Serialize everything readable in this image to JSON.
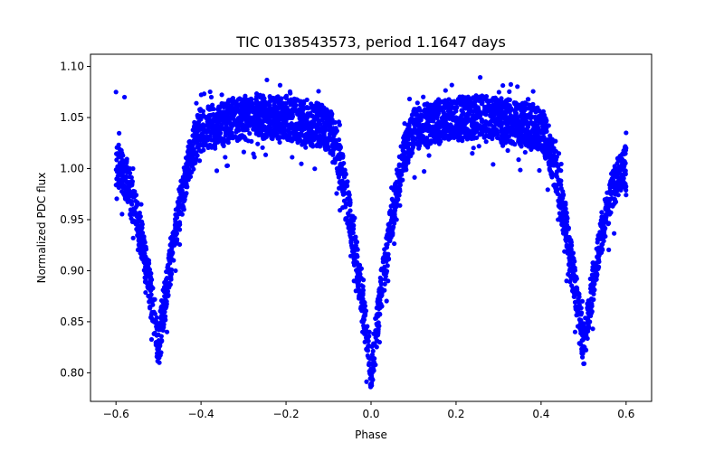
{
  "chart_data": {
    "type": "scatter",
    "title": "TIC 0138543573, period 1.1647 days",
    "xlabel": "Phase",
    "ylabel": "Normalized PDC flux",
    "xlim": [
      -0.66,
      0.66
    ],
    "ylim": [
      0.772,
      1.112
    ],
    "xticks": [
      -0.6,
      -0.4,
      -0.2,
      0.0,
      0.2,
      0.4,
      0.6
    ],
    "xtick_labels": [
      "−0.6",
      "−0.4",
      "−0.2",
      "0.0",
      "0.2",
      "0.4",
      "0.6"
    ],
    "yticks": [
      0.8,
      0.85,
      0.9,
      0.95,
      1.0,
      1.05,
      1.1
    ],
    "ytick_labels": [
      "0.80",
      "0.85",
      "0.90",
      "0.95",
      "1.00",
      "1.05",
      "1.10"
    ],
    "grid": false,
    "legend": "none",
    "marker_color": "#0000ff",
    "series": [
      {
        "name": "flux",
        "model": {
          "phase_range": [
            -0.6,
            0.6
          ],
          "baseline": 1.03,
          "primary_eclipse": {
            "center": 0.0,
            "min_flux": 0.8,
            "half_width": 0.1
          },
          "secondary_eclipses": [
            {
              "center": -0.5,
              "min_flux": 0.825,
              "half_width": 0.1
            },
            {
              "center": 0.5,
              "min_flux": 0.825,
              "half_width": 0.1
            }
          ],
          "out_of_eclipse_peaks": [
            {
              "phase": -0.25,
              "flux": 1.065
            },
            {
              "phase": 0.25,
              "flux": 1.055
            }
          ],
          "visible_extremes": {
            "max_flux": 1.095,
            "min_flux": 0.785
          }
        },
        "sample_points": [
          [
            -0.6,
            1.075
          ],
          [
            -0.58,
            1.07
          ],
          [
            -0.56,
            1.0
          ],
          [
            -0.54,
            0.93
          ],
          [
            -0.52,
            0.87
          ],
          [
            -0.5,
            0.825
          ],
          [
            -0.48,
            0.84
          ],
          [
            -0.46,
            0.9
          ],
          [
            -0.44,
            0.96
          ],
          [
            -0.42,
            1.01
          ],
          [
            -0.4,
            1.03
          ],
          [
            -0.35,
            1.05
          ],
          [
            -0.3,
            1.06
          ],
          [
            -0.25,
            1.065
          ],
          [
            -0.2,
            1.06
          ],
          [
            -0.15,
            1.05
          ],
          [
            -0.1,
            1.03
          ],
          [
            -0.08,
            1.0
          ],
          [
            -0.06,
            0.95
          ],
          [
            -0.04,
            0.89
          ],
          [
            -0.02,
            0.84
          ],
          [
            0.0,
            0.8
          ],
          [
            0.02,
            0.83
          ],
          [
            0.04,
            0.89
          ],
          [
            0.06,
            0.95
          ],
          [
            0.08,
            1.0
          ],
          [
            0.1,
            1.025
          ],
          [
            0.15,
            1.04
          ],
          [
            0.2,
            1.05
          ],
          [
            0.25,
            1.055
          ],
          [
            0.3,
            1.055
          ],
          [
            0.35,
            1.045
          ],
          [
            0.4,
            1.03
          ],
          [
            0.42,
            1.0
          ],
          [
            0.44,
            0.95
          ],
          [
            0.46,
            0.89
          ],
          [
            0.48,
            0.84
          ],
          [
            0.5,
            0.825
          ],
          [
            0.52,
            0.86
          ],
          [
            0.54,
            0.92
          ],
          [
            0.56,
            0.97
          ],
          [
            0.58,
            1.01
          ],
          [
            0.6,
            1.035
          ]
        ]
      }
    ]
  }
}
